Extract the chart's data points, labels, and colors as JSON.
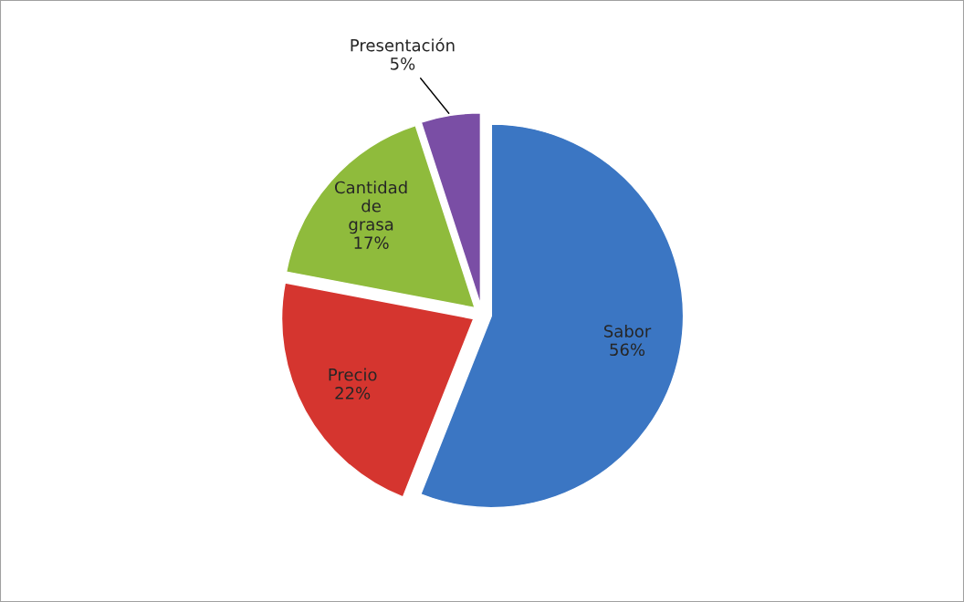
{
  "chart_data": {
    "type": "pie",
    "categories": [
      "Sabor",
      "Precio",
      "Cantidad de grasa",
      "Presentación"
    ],
    "values": [
      56,
      22,
      17,
      5
    ],
    "value_labels": [
      "56%",
      "22%",
      "17%",
      "5%"
    ],
    "colors": [
      "#3b76c3",
      "#d5352f",
      "#8fbb3c",
      "#7a4ea5"
    ],
    "legend": false
  }
}
